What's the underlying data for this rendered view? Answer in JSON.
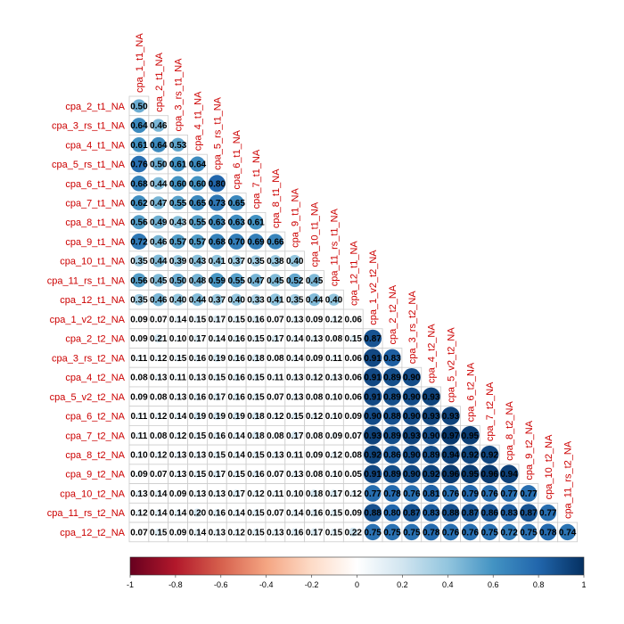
{
  "chart_data": {
    "type": "heatmap",
    "title": "",
    "variables": [
      "cpa_1_t1_NA",
      "cpa_2_t1_NA",
      "cpa_3_rs_t1_NA",
      "cpa_4_t1_NA",
      "cpa_5_rs_t1_NA",
      "cpa_6_t1_NA",
      "cpa_7_t1_NA",
      "cpa_8_t1_NA",
      "cpa_9_t1_NA",
      "cpa_10_t1_NA",
      "cpa_11_rs_t1_NA",
      "cpa_12_t1_NA",
      "cpa_1_v2_t2_NA",
      "cpa_2_t2_NA",
      "cpa_3_rs_t2_NA",
      "cpa_4_t2_NA",
      "cpa_5_v2_t2_NA",
      "cpa_6_t2_NA",
      "cpa_7_t2_NA",
      "cpa_8_t2_NA",
      "cpa_9_t2_NA",
      "cpa_10_t2_NA",
      "cpa_11_rs_t2_NA",
      "cpa_12_t2_NA"
    ],
    "row_labels": [
      "cpa_2_t1_NA",
      "cpa_3_rs_t1_NA",
      "cpa_4_t1_NA",
      "cpa_5_rs_t1_NA",
      "cpa_6_t1_NA",
      "cpa_7_t1_NA",
      "cpa_8_t1_NA",
      "cpa_9_t1_NA",
      "cpa_10_t1_NA",
      "cpa_11_rs_t1_NA",
      "cpa_12_t1_NA",
      "cpa_1_v2_t2_NA",
      "cpa_2_t2_NA",
      "cpa_3_rs_t2_NA",
      "cpa_4_t2_NA",
      "cpa_5_v2_t2_NA",
      "cpa_6_t2_NA",
      "cpa_7_t2_NA",
      "cpa_8_t2_NA",
      "cpa_9_t2_NA",
      "cpa_10_t2_NA",
      "cpa_11_rs_t2_NA",
      "cpa_12_t2_NA"
    ],
    "column_labels": [
      "cpa_1_t1_NA",
      "cpa_2_t1_NA",
      "cpa_3_rs_t1_NA",
      "cpa_4_t1_NA",
      "cpa_5_rs_t1_NA",
      "cpa_6_t1_NA",
      "cpa_7_t1_NA",
      "cpa_8_t1_NA",
      "cpa_9_t1_NA",
      "cpa_10_t1_NA",
      "cpa_11_rs_t1_NA",
      "cpa_12_t1_NA",
      "cpa_1_v2_t2_NA",
      "cpa_2_t2_NA",
      "cpa_3_rs_t2_NA",
      "cpa_4_t2_NA",
      "cpa_5_v2_t2_NA",
      "cpa_6_t2_NA",
      "cpa_7_t2_NA",
      "cpa_8_t2_NA",
      "cpa_9_t2_NA",
      "cpa_10_t2_NA",
      "cpa_11_rs_t2_NA"
    ],
    "values": [
      [
        0.5
      ],
      [
        0.64,
        0.46
      ],
      [
        0.61,
        0.64,
        0.53
      ],
      [
        0.76,
        0.5,
        0.61,
        0.64
      ],
      [
        0.68,
        0.44,
        0.6,
        0.6,
        0.8
      ],
      [
        0.62,
        0.47,
        0.55,
        0.65,
        0.73,
        0.65
      ],
      [
        0.56,
        0.49,
        0.43,
        0.55,
        0.63,
        0.63,
        0.61
      ],
      [
        0.72,
        0.46,
        0.57,
        0.57,
        0.68,
        0.7,
        0.69,
        0.66
      ],
      [
        0.35,
        0.44,
        0.39,
        0.43,
        0.41,
        0.37,
        0.35,
        0.38,
        0.4
      ],
      [
        0.56,
        0.45,
        0.5,
        0.48,
        0.59,
        0.55,
        0.47,
        0.45,
        0.52,
        0.45
      ],
      [
        0.35,
        0.46,
        0.4,
        0.44,
        0.37,
        0.4,
        0.33,
        0.41,
        0.35,
        0.44,
        0.4
      ],
      [
        0.09,
        0.07,
        0.14,
        0.15,
        0.17,
        0.15,
        0.16,
        0.07,
        0.13,
        0.09,
        0.12,
        0.06
      ],
      [
        0.09,
        0.21,
        0.1,
        0.17,
        0.14,
        0.16,
        0.15,
        0.17,
        0.14,
        0.13,
        0.08,
        0.15,
        0.87
      ],
      [
        0.11,
        0.12,
        0.15,
        0.16,
        0.19,
        0.16,
        0.18,
        0.08,
        0.14,
        0.09,
        0.11,
        0.06,
        0.91,
        0.83
      ],
      [
        0.08,
        0.13,
        0.11,
        0.13,
        0.15,
        0.16,
        0.15,
        0.11,
        0.13,
        0.12,
        0.13,
        0.06,
        0.91,
        0.89,
        0.9
      ],
      [
        0.09,
        0.08,
        0.13,
        0.16,
        0.17,
        0.16,
        0.15,
        0.07,
        0.13,
        0.08,
        0.1,
        0.06,
        0.91,
        0.89,
        0.9,
        0.93
      ],
      [
        0.11,
        0.12,
        0.14,
        0.19,
        0.19,
        0.19,
        0.18,
        0.12,
        0.15,
        0.12,
        0.1,
        0.09,
        0.9,
        0.88,
        0.9,
        0.93,
        0.93
      ],
      [
        0.11,
        0.08,
        0.12,
        0.15,
        0.16,
        0.14,
        0.18,
        0.08,
        0.17,
        0.08,
        0.09,
        0.07,
        0.93,
        0.89,
        0.93,
        0.9,
        0.97,
        0.95
      ],
      [
        0.1,
        0.12,
        0.13,
        0.13,
        0.15,
        0.14,
        0.15,
        0.13,
        0.11,
        0.09,
        0.12,
        0.08,
        0.92,
        0.86,
        0.9,
        0.89,
        0.94,
        0.92,
        0.92
      ],
      [
        0.09,
        0.07,
        0.13,
        0.15,
        0.17,
        0.15,
        0.16,
        0.07,
        0.13,
        0.08,
        0.1,
        0.05,
        0.91,
        0.89,
        0.9,
        0.92,
        0.96,
        0.95,
        0.96,
        0.94
      ],
      [
        0.13,
        0.14,
        0.09,
        0.13,
        0.13,
        0.17,
        0.12,
        0.11,
        0.1,
        0.18,
        0.17,
        0.12,
        0.77,
        0.78,
        0.76,
        0.81,
        0.76,
        0.79,
        0.76,
        0.77,
        0.77
      ],
      [
        0.12,
        0.14,
        0.14,
        0.2,
        0.16,
        0.14,
        0.15,
        0.07,
        0.14,
        0.16,
        0.15,
        0.09,
        0.88,
        0.8,
        0.87,
        0.83,
        0.88,
        0.87,
        0.86,
        0.83,
        0.87,
        0.77
      ],
      [
        0.07,
        0.15,
        0.09,
        0.14,
        0.13,
        0.12,
        0.15,
        0.13,
        0.16,
        0.17,
        0.15,
        0.22,
        0.75,
        0.75,
        0.75,
        0.78,
        0.76,
        0.76,
        0.75,
        0.72,
        0.75,
        0.78,
        0.74
      ]
    ],
    "colorbar": {
      "range": [
        -1,
        1
      ],
      "ticks": [
        "-1",
        "-0.8",
        "-0.6",
        "-0.4",
        "-0.2",
        "0",
        "0.2",
        "0.4",
        "0.6",
        "0.8",
        "1"
      ],
      "colors": [
        "#67001f",
        "#b2182b",
        "#d6604d",
        "#f4a582",
        "#fddbc7",
        "#ffffff",
        "#d1e5f0",
        "#92c5de",
        "#4393c3",
        "#2166ac",
        "#053061"
      ]
    },
    "label_color": "#cc0000",
    "grid": true,
    "number_color": "#000000"
  }
}
